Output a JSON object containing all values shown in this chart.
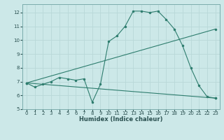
{
  "xlabel": "Humidex (Indice chaleur)",
  "ylabel": "",
  "background_color": "#cce8e8",
  "grid_color": "#b8d8d8",
  "line_color": "#2e7d6e",
  "xlim": [
    -0.5,
    23.5
  ],
  "ylim": [
    5,
    12.6
  ],
  "yticks": [
    5,
    6,
    7,
    8,
    9,
    10,
    11,
    12
  ],
  "xticks": [
    0,
    1,
    2,
    3,
    4,
    5,
    6,
    7,
    8,
    9,
    10,
    11,
    12,
    13,
    14,
    15,
    16,
    17,
    18,
    19,
    20,
    21,
    22,
    23
  ],
  "line1_x": [
    0,
    1,
    2,
    3,
    4,
    5,
    6,
    7,
    8,
    9,
    10,
    11,
    12,
    13,
    14,
    15,
    16,
    17,
    18,
    19,
    20,
    21,
    22,
    23
  ],
  "line1_y": [
    6.9,
    6.6,
    6.8,
    7.0,
    7.3,
    7.2,
    7.1,
    7.2,
    5.5,
    6.8,
    9.9,
    10.3,
    11.0,
    12.1,
    12.1,
    12.0,
    12.1,
    11.5,
    10.8,
    9.6,
    8.0,
    6.7,
    5.9,
    5.8
  ],
  "line2_x": [
    0,
    23
  ],
  "line2_y": [
    6.9,
    10.8
  ],
  "line3_x": [
    0,
    23
  ],
  "line3_y": [
    6.9,
    5.8
  ],
  "tick_fontsize": 5.0,
  "xlabel_fontsize": 6.0
}
